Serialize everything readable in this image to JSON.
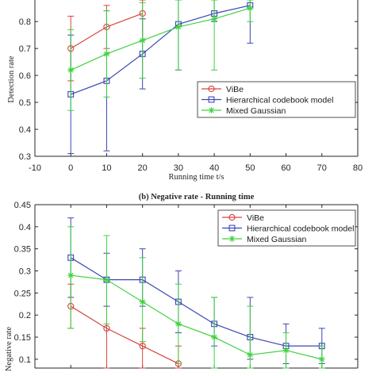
{
  "chart_data": [
    {
      "type": "line",
      "title": "",
      "xlabel": "Running time t/s",
      "ylabel": "Detection rate",
      "xlim": [
        -10,
        80
      ],
      "ylim": [
        0.3,
        0.88
      ],
      "xticks": [
        -10,
        0,
        10,
        20,
        30,
        40,
        50,
        60,
        70,
        80
      ],
      "xtick_labels": [
        "-10",
        "0",
        "10",
        "20",
        "30",
        "40",
        "50",
        "60",
        "70",
        "80"
      ],
      "yticks": [
        0.3,
        0.4,
        0.5,
        0.6,
        0.7,
        0.8
      ],
      "ytick_labels": [
        "0.3",
        "0.4",
        "0.5",
        "0.6",
        "0.7",
        "0.8"
      ],
      "grid": false,
      "legend": "center-right",
      "series": [
        {
          "name": "ViBe",
          "color": "#d6463c",
          "marker": "circle",
          "x": [
            0,
            10,
            20
          ],
          "y": [
            0.7,
            0.78,
            0.83
          ],
          "err_low": [
            0.58,
            0.7,
            0.73
          ],
          "err_high": [
            0.82,
            0.86,
            0.88
          ]
        },
        {
          "name": "Hierarchical codebook model",
          "color": "#3a47b4",
          "marker": "square",
          "x": [
            0,
            10,
            20,
            30,
            40,
            50
          ],
          "y": [
            0.53,
            0.58,
            0.68,
            0.79,
            0.83,
            0.86
          ],
          "err_low": [
            0.31,
            0.32,
            0.55,
            0.62,
            0.8,
            0.72
          ],
          "err_high": [
            0.75,
            0.84,
            0.81,
            0.88,
            0.88,
            0.88
          ]
        },
        {
          "name": "Mixed Gaussian",
          "color": "#3fd23f",
          "marker": "star",
          "x": [
            0,
            10,
            20,
            30,
            40,
            50
          ],
          "y": [
            0.62,
            0.68,
            0.73,
            0.78,
            0.81,
            0.85
          ],
          "err_low": [
            0.47,
            0.52,
            0.59,
            0.62,
            0.62,
            0.8
          ],
          "err_high": [
            0.77,
            0.84,
            0.87,
            0.88,
            0.88,
            0.88
          ]
        }
      ]
    },
    {
      "type": "line",
      "title": "(b) Negative rate - Running time",
      "xlabel": "",
      "ylabel": "Negative rate",
      "xlim": [
        -10,
        80
      ],
      "ylim": [
        0.08,
        0.45
      ],
      "xticks": [
        0,
        10,
        20,
        30,
        40,
        50,
        60,
        70
      ],
      "xtick_labels": [],
      "yticks": [
        0.1,
        0.15,
        0.2,
        0.25,
        0.3,
        0.35,
        0.4,
        0.45
      ],
      "ytick_labels": [
        "0.1",
        "0.15",
        "0.2",
        "0.25",
        "0.3",
        "0.35",
        "0.4",
        "0.45"
      ],
      "grid": false,
      "legend": "top-right",
      "series": [
        {
          "name": "ViBe",
          "color": "#d6463c",
          "marker": "circle",
          "x": [
            0,
            10,
            20,
            30
          ],
          "y": [
            0.22,
            0.17,
            0.13,
            0.09
          ],
          "err_low": [
            0.17,
            0.08,
            0.08,
            0.08
          ],
          "err_high": [
            0.27,
            0.22,
            0.17,
            0.13
          ]
        },
        {
          "name": "Hierarchical codebook model",
          "color": "#3a47b4",
          "marker": "square",
          "x": [
            0,
            10,
            20,
            30,
            40,
            50,
            60,
            70
          ],
          "y": [
            0.33,
            0.28,
            0.28,
            0.23,
            0.18,
            0.15,
            0.13,
            0.13
          ],
          "err_low": [
            0.24,
            0.22,
            0.22,
            0.16,
            0.13,
            0.1,
            0.09,
            0.09
          ],
          "err_high": [
            0.42,
            0.34,
            0.35,
            0.3,
            0.24,
            0.24,
            0.18,
            0.17
          ]
        },
        {
          "name": "Mixed Gaussian",
          "color": "#3fd23f",
          "marker": "star",
          "x": [
            0,
            10,
            20,
            30,
            40,
            50,
            60,
            70
          ],
          "y": [
            0.29,
            0.28,
            0.23,
            0.18,
            0.15,
            0.11,
            0.12,
            0.1
          ],
          "err_low": [
            0.17,
            0.18,
            0.14,
            0.09,
            0.08,
            0.08,
            0.08,
            0.08
          ],
          "err_high": [
            0.4,
            0.38,
            0.33,
            0.27,
            0.24,
            0.22,
            0.16,
            0.13
          ]
        }
      ]
    }
  ]
}
